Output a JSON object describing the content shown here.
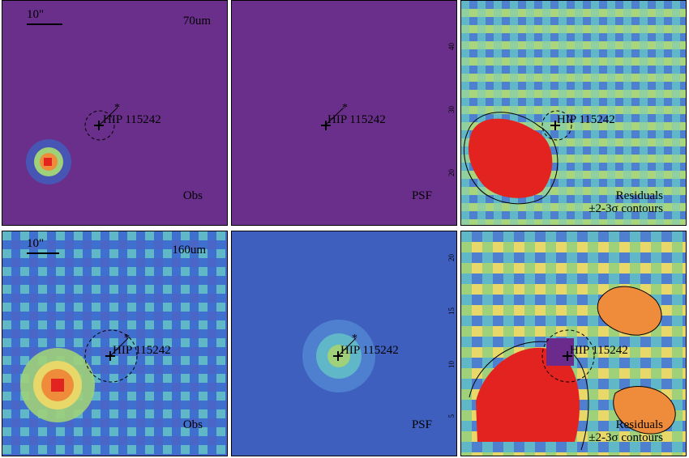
{
  "figure": {
    "star_name": "HIP 115242",
    "scale_bar_text": "10\"",
    "panels": [
      {
        "id": "obs70",
        "band": "70um",
        "kind": "Obs",
        "caption": "Obs"
      },
      {
        "id": "psf70",
        "band": "",
        "kind": "PSF",
        "caption": "PSF"
      },
      {
        "id": "res70",
        "band": "",
        "kind": "Residuals",
        "caption": "Residuals",
        "caption2": "±2-3σ contours"
      },
      {
        "id": "obs160",
        "band": "160um",
        "kind": "Obs",
        "caption": "Obs"
      },
      {
        "id": "psf160",
        "band": "",
        "kind": "PSF",
        "caption": "PSF"
      },
      {
        "id": "res160",
        "band": "",
        "kind": "Residuals",
        "caption": "Residuals",
        "caption2": "±2-3σ contours"
      }
    ],
    "tick_labels_top": [
      "40",
      "30",
      "20",
      "10"
    ],
    "tick_labels_bottom": [
      "20",
      "15",
      "10",
      "5"
    ],
    "colors": {
      "purple": "#6a2b8c",
      "blue": "#3f5fbf",
      "cyan": "#5fb7c8",
      "green": "#9fd07a",
      "yellow": "#e8d86a",
      "orange": "#ee8c3b",
      "red": "#e3231f"
    }
  }
}
